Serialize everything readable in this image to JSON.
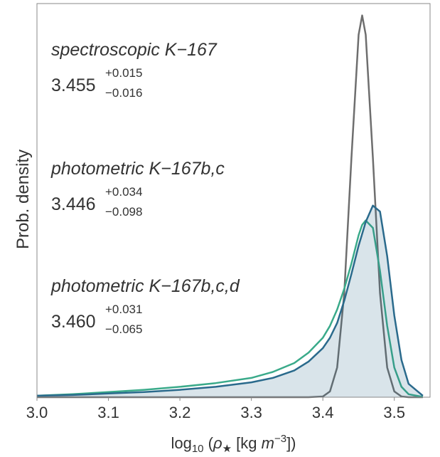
{
  "chart_data": {
    "type": "line",
    "xlabel": [
      "log",
      "10",
      " (",
      "ρ",
      "★",
      " [kg ",
      "m",
      "−3",
      "])"
    ],
    "ylabel": "Prob. density",
    "xlim": [
      3.0,
      3.55
    ],
    "xticks": [
      {
        "value": 3.0,
        "label": "3.0"
      },
      3.1,
      3.2,
      3.3,
      3.4,
      3.5
    ],
    "ylim": [
      0,
      26.5
    ],
    "x": [
      3.0,
      3.05,
      3.1,
      3.15,
      3.2,
      3.25,
      3.3,
      3.33,
      3.36,
      3.38,
      3.4,
      3.41,
      3.42,
      3.43,
      3.44,
      3.45,
      3.455,
      3.46,
      3.47,
      3.48,
      3.49,
      3.5,
      3.51,
      3.52,
      3.54
    ],
    "series": [
      {
        "name": "spectroscopic K−167",
        "estimate": "3.455",
        "err_plus": "+0.015",
        "err_minus": "−0.016",
        "color": "#6e6e6e",
        "fill": false,
        "values": [
          0,
          0,
          0,
          0,
          0,
          0,
          0,
          0,
          0,
          0,
          0.05,
          0.39,
          2.0,
          7.0,
          16.1,
          24.4,
          25.7,
          24.4,
          16.1,
          7.0,
          2.0,
          0.39,
          0.05,
          0,
          0
        ]
      },
      {
        "name": "photometric K−167b,c",
        "estimate": "3.446",
        "err_plus": "+0.034",
        "err_minus": "−0.098",
        "color": "#3aaa8a",
        "fill": false,
        "values": [
          0.1,
          0.2,
          0.35,
          0.5,
          0.7,
          0.95,
          1.3,
          1.7,
          2.3,
          3.0,
          4.0,
          4.8,
          5.9,
          7.3,
          9.0,
          10.9,
          11.6,
          11.9,
          11.4,
          8.5,
          4.8,
          2.0,
          0.7,
          0.2,
          0.02
        ]
      },
      {
        "name": "photometric K−167b,c,d",
        "estimate": "3.460",
        "err_plus": "+0.031",
        "err_minus": "−0.065",
        "color": "#2a6a8c",
        "fill": true,
        "values": [
          0.1,
          0.15,
          0.25,
          0.35,
          0.5,
          0.7,
          1.0,
          1.3,
          1.8,
          2.4,
          3.3,
          4.0,
          5.0,
          6.5,
          8.3,
          10.2,
          11.0,
          11.8,
          12.9,
          12.5,
          9.5,
          5.5,
          2.5,
          0.9,
          0.1
        ]
      }
    ]
  }
}
